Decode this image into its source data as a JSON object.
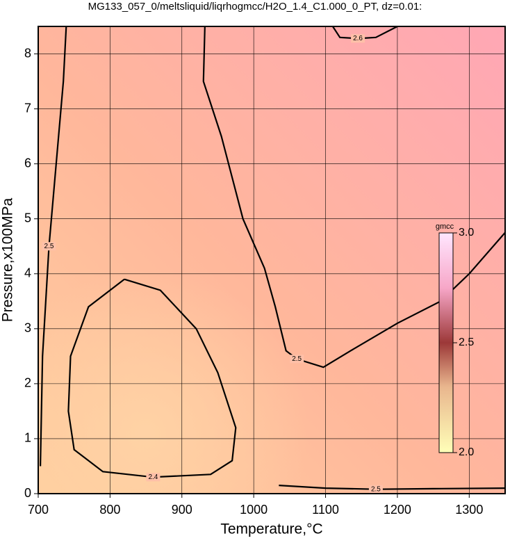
{
  "chart_data": {
    "type": "contour",
    "title": "MG133_057_0/meltsliquid/liqrhogmcc/H2O_1.4_C1.000_0_PT, dz=0.01:",
    "x_label": "Temperature,°C",
    "y_label": "Pressure,x100MPa",
    "xlim": [
      700,
      1350
    ],
    "xticks": [
      700,
      800,
      900,
      1000,
      1100,
      1200,
      1300
    ],
    "ylim": [
      0,
      8.5
    ],
    "yticks": [
      0,
      1,
      2,
      3,
      4,
      5,
      6,
      7,
      8
    ],
    "grid": true,
    "colorbar": {
      "label": "gmcc",
      "lim": [
        2,
        3
      ],
      "ticks": [
        {
          "value": 2,
          "label": "2.0"
        },
        2.5,
        {
          "value": 3,
          "label": "3.0"
        }
      ]
    },
    "contours": [
      {
        "level": 2.4,
        "x": [
          820,
          870,
          920,
          950,
          975,
          970,
          940,
          860,
          790,
          750,
          742,
          745,
          770,
          820
        ],
        "y": [
          3.9,
          3.7,
          3.0,
          2.2,
          1.2,
          0.6,
          0.35,
          0.3,
          0.4,
          0.8,
          1.5,
          2.5,
          3.4,
          3.9
        ]
      },
      {
        "level": 2.5,
        "x": [
          932,
          930,
          955,
          985,
          1015,
          1030,
          1045,
          1060,
          1097,
          1135,
          1200,
          1260,
          1300,
          1350
        ],
        "y": [
          8.5,
          7.5,
          6.5,
          5.0,
          4.1,
          3.4,
          2.6,
          2.45,
          2.3,
          2.6,
          3.1,
          3.5,
          4.0,
          4.75
        ]
      },
      {
        "level": 2.5,
        "x": [
          739,
          735,
          725,
          715,
          706,
          703
        ],
        "y": [
          8.5,
          7.5,
          6.0,
          4.5,
          2.5,
          0.5
        ]
      },
      {
        "level": 2.5,
        "x": [
          1035,
          1100,
          1170,
          1250,
          1350
        ],
        "y": [
          0.15,
          0.1,
          0.08,
          0.09,
          0.1
        ]
      },
      {
        "level": 2.6,
        "x": [
          1110,
          1120,
          1145,
          1170,
          1200
        ],
        "y": [
          8.5,
          8.3,
          8.28,
          8.3,
          8.5
        ]
      }
    ]
  }
}
